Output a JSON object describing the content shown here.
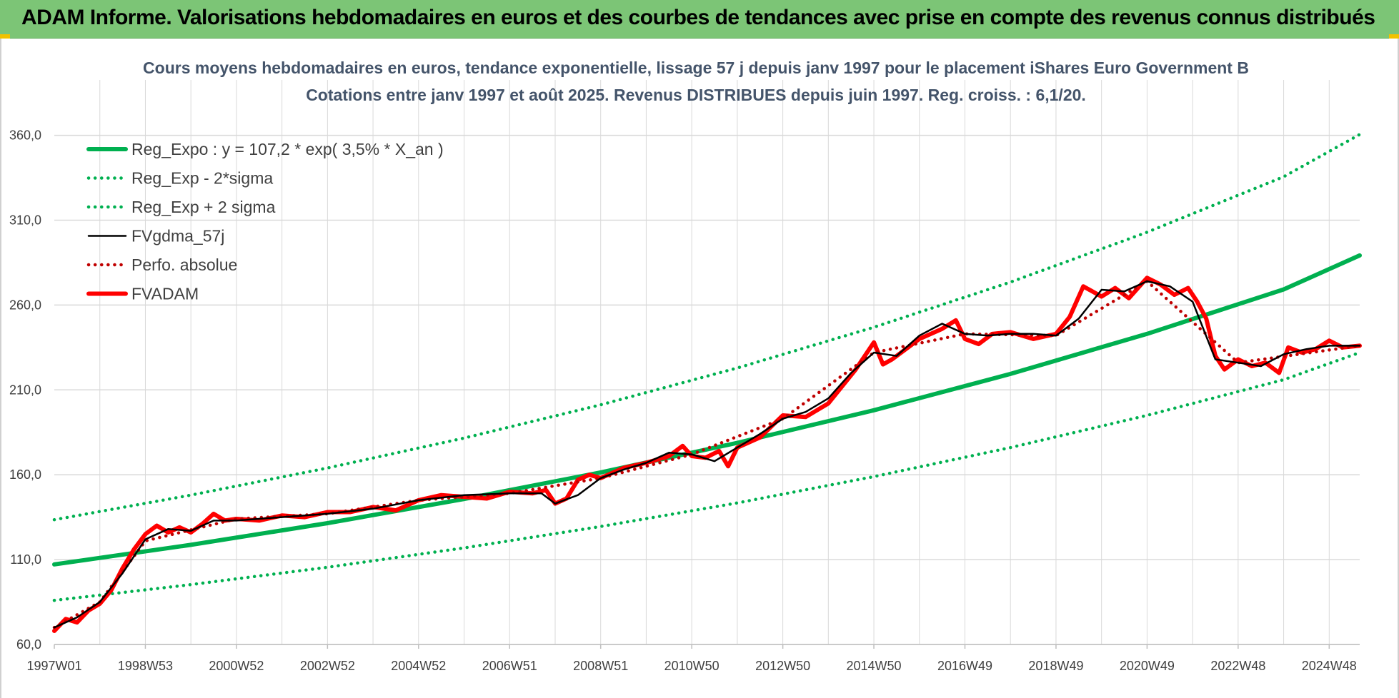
{
  "header": {
    "title": "ADAM Informe. Valorisations hebdomadaires en euros et des courbes de tendances avec prise en compte des revenus connus distribués"
  },
  "colors": {
    "banner": "#7cc576",
    "regression": "#00b050",
    "smoothed": "#000000",
    "adam": "#ff0000",
    "grid": "#d9d9d9"
  },
  "chart_data": {
    "type": "line",
    "title_line1": "Cours moyens hebdomadaires en euros, tendance exponentielle, lissage 57 j depuis janv 1997 pour le placement iShares Euro Government B",
    "title_line2": "Cotations entre janv 1997 et août 2025.  Revenus DISTRIBUES depuis juin 1997.  Reg. croiss. : 6,1/20.",
    "ylim": [
      60,
      380
    ],
    "yticks": [
      "60,0",
      "110,0",
      "160,0",
      "210,0",
      "260,0",
      "310,0",
      "360,0"
    ],
    "ytick_values": [
      60,
      110,
      160,
      210,
      260,
      310,
      360
    ],
    "xticks": [
      "1997W01",
      "1998W53",
      "2000W52",
      "2002W52",
      "2004W52",
      "2006W51",
      "2008W51",
      "2010W50",
      "2012W50",
      "2014W50",
      "2016W49",
      "2018W49",
      "2020W49",
      "2022W48",
      "2024W48"
    ],
    "xtick_years": [
      1997.0,
      1999.0,
      2001.0,
      2003.0,
      2005.0,
      2007.0,
      2009.0,
      2011.0,
      2013.0,
      2015.0,
      2017.0,
      2019.0,
      2021.0,
      2023.0,
      2025.0
    ],
    "xlim": [
      1997.0,
      2025.67
    ],
    "grid": true,
    "legend_position": "top-left",
    "series": [
      {
        "name": "Reg_Expo : y = 107,2 * exp( 3,5% *  X_an )",
        "style": "solid-thick",
        "color": "#00b050",
        "x": [
          1997.0,
          2000.0,
          2003.0,
          2006.0,
          2009.0,
          2012.0,
          2015.0,
          2018.0,
          2021.0,
          2024.0,
          2025.67
        ],
        "values": [
          107.2,
          118.7,
          131.5,
          145.7,
          161.4,
          178.8,
          198.0,
          219.4,
          243.0,
          269.2,
          289.2
        ]
      },
      {
        "name": "Reg_Exp - 2*sigma",
        "style": "dotted",
        "color": "#00b050",
        "x": [
          1997.0,
          2000.0,
          2003.0,
          2006.0,
          2009.0,
          2012.0,
          2015.0,
          2018.0,
          2021.0,
          2024.0,
          2025.67
        ],
        "values": [
          86.0,
          95.3,
          105.5,
          116.9,
          129.5,
          143.4,
          158.9,
          176.0,
          195.0,
          216.0,
          232.0
        ]
      },
      {
        "name": "Reg_Exp + 2 sigma",
        "style": "dotted",
        "color": "#00b050",
        "x": [
          1997.0,
          2000.0,
          2003.0,
          2006.0,
          2009.0,
          2012.0,
          2015.0,
          2018.0,
          2021.0,
          2024.0,
          2025.67
        ],
        "values": [
          133.5,
          148.0,
          164.0,
          181.6,
          201.2,
          222.9,
          246.9,
          273.5,
          302.9,
          335.6,
          360.5
        ]
      },
      {
        "name": "FVgdma_57j",
        "style": "solid",
        "color": "#000000",
        "x": [
          1997.0,
          1997.5,
          1998.0,
          1998.5,
          1999.0,
          1999.5,
          2000.0,
          2000.5,
          2001.0,
          2002.0,
          2003.0,
          2004.0,
          2005.0,
          2006.0,
          2007.0,
          2007.7,
          2008.0,
          2008.5,
          2009.0,
          2009.5,
          2010.0,
          2010.5,
          2011.0,
          2011.5,
          2012.0,
          2012.5,
          2013.0,
          2013.5,
          2014.0,
          2014.5,
          2015.0,
          2015.5,
          2016.0,
          2016.5,
          2017.0,
          2017.5,
          2018.0,
          2018.5,
          2019.0,
          2019.5,
          2020.0,
          2020.5,
          2021.0,
          2021.5,
          2022.0,
          2022.5,
          2023.0,
          2023.5,
          2024.0,
          2024.5,
          2025.0,
          2025.67
        ],
        "values": [
          70.0,
          76.0,
          85.0,
          102.0,
          122.0,
          128.0,
          127.0,
          133.0,
          133.0,
          135.0,
          137.0,
          140.0,
          145.0,
          148.0,
          149.0,
          149.0,
          143.0,
          148.0,
          158.0,
          163.0,
          167.0,
          173.0,
          172.0,
          168.0,
          176.0,
          184.0,
          193.0,
          197.0,
          205.0,
          220.0,
          232.0,
          230.0,
          242.0,
          249.0,
          243.0,
          242.0,
          243.0,
          243.0,
          242.0,
          252.0,
          269.0,
          268.0,
          274.0,
          271.0,
          262.0,
          228.0,
          226.0,
          224.0,
          231.0,
          234.0,
          236.0,
          236.0
        ]
      },
      {
        "name": "Perfo. absolue",
        "style": "dotted",
        "color": "#c00000",
        "x": [
          1997.0,
          1998.0,
          1999.0,
          2001.0,
          2003.0,
          2005.0,
          2007.0,
          2009.0,
          2011.0,
          2013.0,
          2015.0,
          2017.0,
          2019.0,
          2021.0,
          2023.0,
          2025.67
        ],
        "values": [
          70.0,
          85.0,
          121.0,
          134.0,
          137.0,
          145.0,
          149.0,
          158.0,
          172.0,
          193.0,
          232.0,
          243.0,
          242.0,
          274.0,
          226.0,
          236.0
        ]
      },
      {
        "name": "FVADAM",
        "style": "solid-thick",
        "color": "#ff0000",
        "x": [
          1997.0,
          1997.25,
          1997.5,
          1997.75,
          1998.0,
          1998.25,
          1998.5,
          1998.75,
          1999.0,
          1999.25,
          1999.5,
          1999.75,
          2000.0,
          2000.25,
          2000.5,
          2000.75,
          2001.0,
          2001.5,
          2002.0,
          2002.5,
          2003.0,
          2003.5,
          2004.0,
          2004.5,
          2005.0,
          2005.5,
          2006.0,
          2006.5,
          2007.0,
          2007.5,
          2007.8,
          2008.0,
          2008.25,
          2008.5,
          2008.75,
          2009.0,
          2009.5,
          2010.0,
          2010.5,
          2010.8,
          2011.0,
          2011.3,
          2011.6,
          2011.8,
          2012.0,
          2012.5,
          2013.0,
          2013.5,
          2014.0,
          2014.3,
          2014.6,
          2015.0,
          2015.2,
          2015.4,
          2015.7,
          2016.0,
          2016.5,
          2016.8,
          2017.0,
          2017.3,
          2017.6,
          2018.0,
          2018.5,
          2019.0,
          2019.3,
          2019.6,
          2020.0,
          2020.3,
          2020.6,
          2021.0,
          2021.3,
          2021.6,
          2021.9,
          2022.1,
          2022.3,
          2022.5,
          2022.7,
          2023.0,
          2023.3,
          2023.6,
          2023.9,
          2024.1,
          2024.4,
          2024.7,
          2025.0,
          2025.3,
          2025.67
        ],
        "values": [
          68.0,
          75.0,
          73.0,
          80.0,
          84.0,
          92.0,
          105.0,
          116.0,
          125.0,
          130.0,
          126.0,
          129.0,
          126.0,
          131.0,
          137.0,
          133.0,
          134.0,
          133.0,
          136.0,
          135.0,
          138.0,
          138.0,
          141.0,
          139.0,
          145.0,
          148.0,
          147.0,
          146.0,
          150.0,
          149.0,
          151.0,
          143.0,
          146.0,
          157.0,
          160.0,
          158.0,
          164.0,
          167.0,
          171.0,
          177.0,
          171.0,
          170.0,
          174.0,
          165.0,
          176.0,
          182.0,
          195.0,
          194.0,
          202.0,
          212.0,
          222.0,
          238.0,
          225.0,
          228.0,
          234.0,
          240.0,
          246.0,
          251.0,
          240.0,
          237.0,
          243.0,
          244.0,
          240.0,
          243.0,
          253.0,
          271.0,
          265.0,
          270.0,
          264.0,
          276.0,
          272.0,
          266.0,
          270.0,
          262.0,
          252.0,
          230.0,
          222.0,
          228.0,
          224.0,
          226.0,
          220.0,
          235.0,
          232.0,
          234.0,
          239.0,
          235.0,
          236.0
        ]
      }
    ]
  }
}
